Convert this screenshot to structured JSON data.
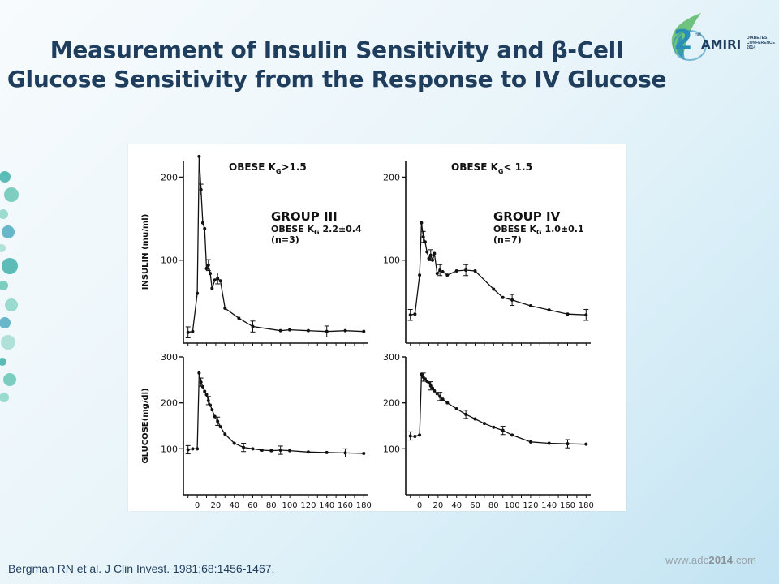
{
  "slide": {
    "title_line1": "Measurement of Insulin Sensitivity and β-Cell",
    "title_line2": "Glucose Sensitivity from the Response to IV Glucose",
    "citation": "Bergman RN et al. J Clin Invest. 1981;68:1456-1467.",
    "website_prefix": "www.adc",
    "website_year": "2014",
    "website_suffix": ".com"
  },
  "logo": {
    "number": "2",
    "superscript": "nd",
    "name": "AMIRI",
    "subtext_1": "DIABETES",
    "subtext_2": "CONFERENCE 2014",
    "colors": {
      "teal": "#2a8fb7",
      "green": "#5cb86a",
      "navy": "#1f3d5c"
    }
  },
  "colors": {
    "title": "#1f3d5c",
    "accent": "#2a8fb7"
  },
  "chart_data": [
    {
      "type": "line",
      "panel": "insulin-group-iii",
      "annotation_header": "OBESE K",
      "annotation_sub": "G",
      "annotation_cmp": ">1.5",
      "group_label": "GROUP III",
      "subtitle_main": "OBESE K",
      "subtitle_sub": "G",
      "subtitle_value": "2.2±0.4",
      "n_label": "(n=3)",
      "ylabel": "INSULIN (mu/ml)",
      "yticks": [
        "100",
        "200"
      ],
      "ylim": [
        0,
        220
      ],
      "xlim": [
        -15,
        185
      ],
      "x": [
        -10,
        -5,
        0,
        2,
        4,
        6,
        8,
        10,
        12,
        14,
        16,
        19,
        22,
        25,
        30,
        45,
        60,
        90,
        100,
        120,
        140,
        160,
        180
      ],
      "y": [
        13,
        14,
        60,
        225,
        185,
        145,
        138,
        90,
        94,
        84,
        66,
        76,
        78,
        75,
        42,
        30,
        20,
        15,
        16,
        15,
        14,
        15,
        14
      ]
    },
    {
      "type": "line",
      "panel": "insulin-group-iv",
      "annotation_header": "OBESE K",
      "annotation_sub": "G",
      "annotation_cmp": "< 1.5",
      "group_label": "GROUP IV",
      "subtitle_main": "OBESE K",
      "subtitle_sub": "G",
      "subtitle_value": "1.0±0.1",
      "n_label": "(n=7)",
      "ylabel": "",
      "yticks": [
        "100",
        "200"
      ],
      "ylim": [
        0,
        220
      ],
      "xlim": [
        -15,
        185
      ],
      "x": [
        -10,
        -5,
        0,
        2,
        4,
        6,
        8,
        10,
        12,
        14,
        16,
        19,
        22,
        25,
        30,
        40,
        50,
        60,
        80,
        90,
        100,
        120,
        140,
        160,
        180
      ],
      "y": [
        34,
        35,
        82,
        145,
        128,
        122,
        110,
        102,
        106,
        100,
        108,
        84,
        88,
        86,
        82,
        87,
        88,
        87,
        65,
        55,
        52,
        45,
        40,
        35,
        34
      ]
    },
    {
      "type": "line",
      "panel": "glucose-group-iii",
      "ylabel": "GLUCOSE(mg/dl)",
      "yticks": [
        "100",
        "200",
        "300"
      ],
      "ylim": [
        0,
        300
      ],
      "xticks": [
        "0",
        "20",
        "40",
        "60",
        "80",
        "100",
        "120",
        "140",
        "160",
        "180"
      ],
      "xlim": [
        -15,
        185
      ],
      "x": [
        -10,
        -5,
        0,
        2,
        4,
        6,
        8,
        10,
        12,
        14,
        16,
        19,
        22,
        25,
        30,
        40,
        50,
        60,
        70,
        80,
        90,
        100,
        120,
        140,
        160,
        180
      ],
      "y": [
        98,
        100,
        100,
        265,
        245,
        235,
        225,
        218,
        205,
        195,
        185,
        170,
        160,
        148,
        132,
        112,
        103,
        100,
        97,
        96,
        97,
        96,
        93,
        92,
        91,
        90
      ]
    },
    {
      "type": "line",
      "panel": "glucose-group-iv",
      "ylabel": "",
      "yticks": [
        "100",
        "200",
        "300"
      ],
      "ylim": [
        0,
        300
      ],
      "xticks": [
        "0",
        "20",
        "40",
        "60",
        "80",
        "100",
        "120",
        "140",
        "160",
        "180"
      ],
      "xlim": [
        -15,
        185
      ],
      "x": [
        -10,
        -5,
        0,
        2,
        4,
        6,
        8,
        10,
        12,
        14,
        16,
        19,
        22,
        25,
        30,
        40,
        50,
        60,
        70,
        80,
        90,
        100,
        120,
        140,
        160,
        180
      ],
      "y": [
        128,
        127,
        130,
        262,
        256,
        252,
        247,
        243,
        237,
        232,
        226,
        220,
        214,
        208,
        200,
        187,
        175,
        165,
        155,
        147,
        140,
        130,
        115,
        112,
        111,
        110
      ]
    }
  ]
}
